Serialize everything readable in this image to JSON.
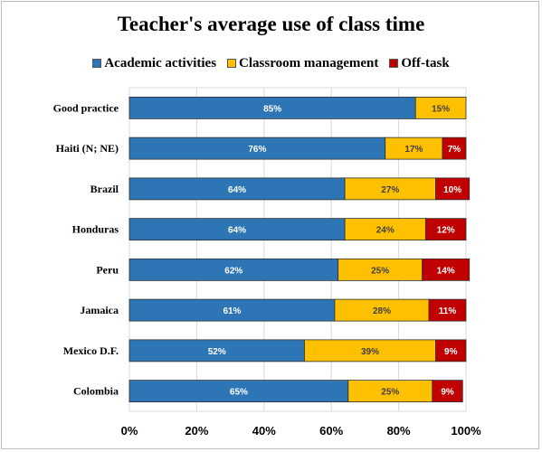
{
  "chart_data": {
    "type": "bar",
    "orientation": "horizontal",
    "stacked": true,
    "title": "Teacher's average use of class time",
    "categories": [
      "Good practice",
      "Haiti (N; NE)",
      "Brazil",
      "Honduras",
      "Peru",
      "Jamaica",
      "Mexico D.F.",
      "Colombia"
    ],
    "series": [
      {
        "name": "Academic activities",
        "color": "#2e75b6",
        "label_color": "#ffffff",
        "values": [
          85,
          76,
          64,
          64,
          62,
          61,
          52,
          65
        ],
        "labels": [
          "85%",
          "76%",
          "64%",
          "64%",
          "62%",
          "61%",
          "52%",
          "65%"
        ]
      },
      {
        "name": "Classroom management",
        "color": "#ffc000",
        "label_color": "#404040",
        "values": [
          15,
          17,
          27,
          24,
          25,
          28,
          39,
          25
        ],
        "labels": [
          "15%",
          "17%",
          "27%",
          "24%",
          "25%",
          "28%",
          "39%",
          "25%"
        ]
      },
      {
        "name": "Off-task",
        "color": "#c00000",
        "label_color": "#ffffff",
        "values": [
          0,
          7,
          10,
          12,
          14,
          11,
          9,
          9
        ],
        "labels": [
          "",
          "7%",
          "10%",
          "12%",
          "14%",
          "11%",
          "9%",
          "9%"
        ]
      }
    ],
    "xlim": [
      0,
      100
    ],
    "x_ticks": [
      "0%",
      "20%",
      "40%",
      "60%",
      "80%",
      "100%"
    ],
    "legend_position": "top",
    "grid": true
  }
}
